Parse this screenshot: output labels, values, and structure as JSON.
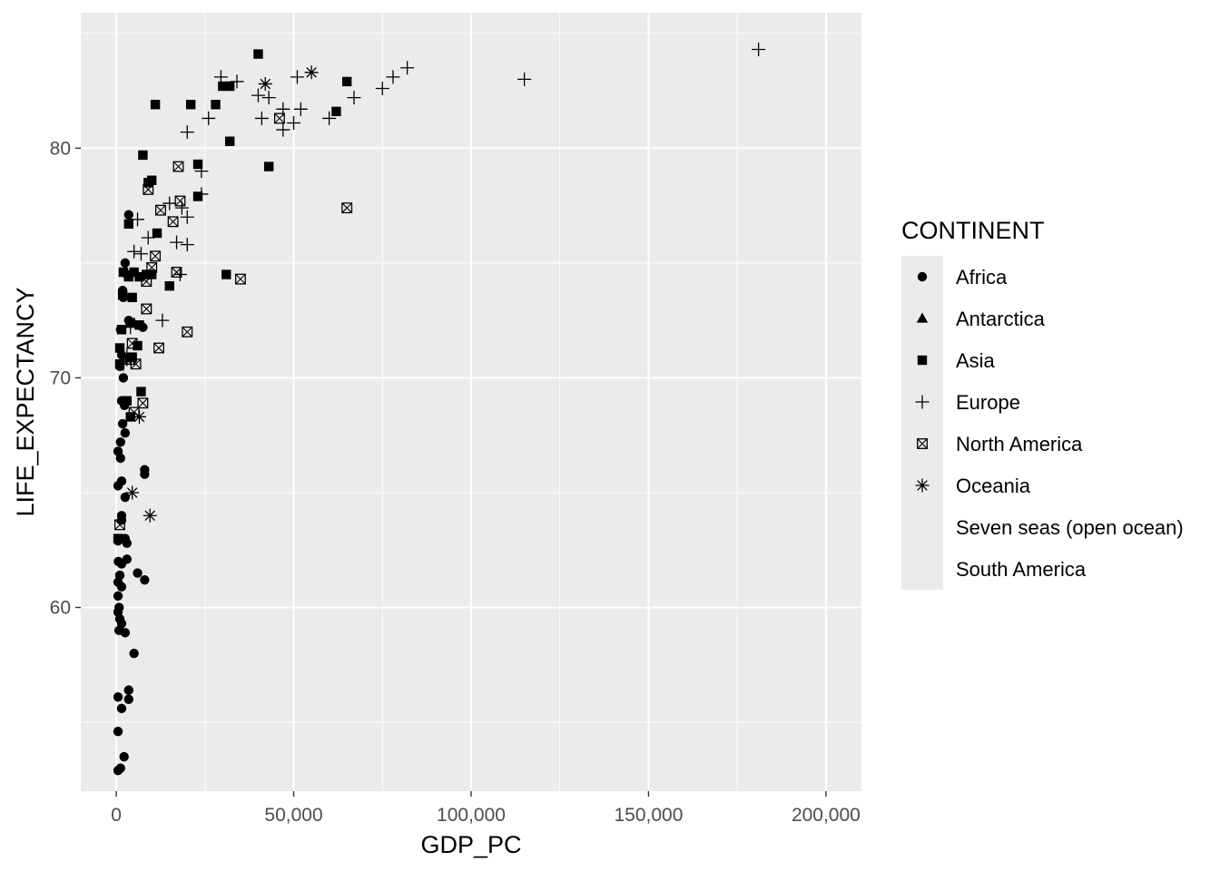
{
  "chart_data": {
    "type": "scatter",
    "xlabel": "GDP_PC",
    "ylabel": "LIFE_EXPECTANCY",
    "xlim": [
      -10000,
      210000
    ],
    "ylim": [
      52,
      85.9
    ],
    "x_ticks": [
      0,
      50000,
      100000,
      150000,
      200000
    ],
    "x_tick_labels": [
      "0",
      "50,000",
      "100,000",
      "150,000",
      "200,000"
    ],
    "y_ticks": [
      60,
      70,
      80
    ],
    "y_tick_labels": [
      "60",
      "70",
      "80"
    ],
    "grid": true,
    "legend_position": "right",
    "legend": {
      "title": "CONTINENT",
      "entries": [
        {
          "name": "Africa",
          "shape": "circle"
        },
        {
          "name": "Antarctica",
          "shape": "triangle"
        },
        {
          "name": "Asia",
          "shape": "square"
        },
        {
          "name": "Europe",
          "shape": "plus"
        },
        {
          "name": "North America",
          "shape": "boxx"
        },
        {
          "name": "Oceania",
          "shape": "star"
        },
        {
          "name": "Seven seas (open ocean)",
          "shape": "none"
        },
        {
          "name": "South America",
          "shape": "none"
        }
      ]
    },
    "series": [
      {
        "name": "Africa",
        "shape": "circle",
        "points": [
          [
            3500,
            77.1
          ],
          [
            2500,
            75.0
          ],
          [
            3000,
            74.5
          ],
          [
            1800,
            73.8
          ],
          [
            2000,
            73.5
          ],
          [
            1200,
            72.1
          ],
          [
            3500,
            72.5
          ],
          [
            7500,
            72.2
          ],
          [
            1500,
            71.0
          ],
          [
            1000,
            70.5
          ],
          [
            2000,
            70.0
          ],
          [
            1500,
            69.0
          ],
          [
            2300,
            68.8
          ],
          [
            1800,
            68.0
          ],
          [
            2500,
            67.6
          ],
          [
            1200,
            67.2
          ],
          [
            500,
            66.8
          ],
          [
            1200,
            66.5
          ],
          [
            8000,
            66.0
          ],
          [
            8000,
            65.8
          ],
          [
            1500,
            65.5
          ],
          [
            500,
            65.3
          ],
          [
            2500,
            64.8
          ],
          [
            1500,
            64.0
          ],
          [
            1500,
            63.8
          ],
          [
            2500,
            63.0
          ],
          [
            3000,
            62.8
          ],
          [
            500,
            62.9
          ],
          [
            600,
            62.0
          ],
          [
            1500,
            61.9
          ],
          [
            3000,
            62.1
          ],
          [
            1000,
            61.4
          ],
          [
            6000,
            61.5
          ],
          [
            500,
            61.1
          ],
          [
            1500,
            60.9
          ],
          [
            8000,
            61.2
          ],
          [
            500,
            60.5
          ],
          [
            800,
            60.0
          ],
          [
            500,
            59.8
          ],
          [
            1000,
            59.5
          ],
          [
            1500,
            59.3
          ],
          [
            800,
            59.0
          ],
          [
            2500,
            58.9
          ],
          [
            5000,
            58.0
          ],
          [
            500,
            56.1
          ],
          [
            3500,
            56.4
          ],
          [
            3500,
            56.0
          ],
          [
            1500,
            55.6
          ],
          [
            2200,
            53.5
          ],
          [
            500,
            54.6
          ],
          [
            500,
            52.9
          ],
          [
            1200,
            53.0
          ]
        ]
      },
      {
        "name": "Antarctica",
        "shape": "triangle",
        "points": []
      },
      {
        "name": "Asia",
        "shape": "square",
        "points": [
          [
            40000,
            84.1
          ],
          [
            30000,
            82.7
          ],
          [
            32000,
            82.7
          ],
          [
            65000,
            82.9
          ],
          [
            11000,
            81.9
          ],
          [
            21000,
            81.9
          ],
          [
            28000,
            81.9
          ],
          [
            62000,
            81.6
          ],
          [
            32000,
            80.3
          ],
          [
            7500,
            79.7
          ],
          [
            23000,
            79.3
          ],
          [
            43000,
            79.2
          ],
          [
            10000,
            78.6
          ],
          [
            9000,
            78.5
          ],
          [
            23000,
            77.9
          ],
          [
            3500,
            76.7
          ],
          [
            11500,
            76.3
          ],
          [
            15000,
            74.0
          ],
          [
            31000,
            74.5
          ],
          [
            2000,
            74.6
          ],
          [
            3500,
            74.4
          ],
          [
            5000,
            74.6
          ],
          [
            6500,
            74.4
          ],
          [
            8500,
            74.5
          ],
          [
            10000,
            74.5
          ],
          [
            4500,
            73.5
          ],
          [
            1800,
            73.6
          ],
          [
            1500,
            72.1
          ],
          [
            4000,
            72.4
          ],
          [
            6500,
            72.3
          ],
          [
            1000,
            71.3
          ],
          [
            6000,
            71.4
          ],
          [
            4500,
            70.9
          ],
          [
            1000,
            70.6
          ],
          [
            7000,
            69.4
          ],
          [
            3000,
            69.0
          ],
          [
            4000,
            68.3
          ],
          [
            500,
            63.0
          ]
        ]
      },
      {
        "name": "Europe",
        "shape": "plus",
        "points": [
          [
            181000,
            84.3
          ],
          [
            82000,
            83.5
          ],
          [
            78000,
            83.1
          ],
          [
            115000,
            83.0
          ],
          [
            29500,
            83.1
          ],
          [
            34000,
            82.9
          ],
          [
            51000,
            83.1
          ],
          [
            75000,
            82.6
          ],
          [
            40000,
            82.3
          ],
          [
            43000,
            82.2
          ],
          [
            67000,
            82.2
          ],
          [
            47000,
            81.7
          ],
          [
            52000,
            81.7
          ],
          [
            26000,
            81.3
          ],
          [
            41000,
            81.3
          ],
          [
            50000,
            81.1
          ],
          [
            60000,
            81.3
          ],
          [
            47000,
            80.8
          ],
          [
            20000,
            80.7
          ],
          [
            24000,
            79.0
          ],
          [
            24000,
            78.0
          ],
          [
            15000,
            77.6
          ],
          [
            18500,
            77.4
          ],
          [
            20000,
            77.0
          ],
          [
            6000,
            76.9
          ],
          [
            9000,
            76.1
          ],
          [
            17000,
            75.9
          ],
          [
            20000,
            75.8
          ],
          [
            5000,
            75.5
          ],
          [
            7000,
            75.4
          ],
          [
            18000,
            74.5
          ],
          [
            13000,
            72.5
          ],
          [
            4000,
            72.2
          ],
          [
            3000,
            71.0
          ],
          [
            2000,
            70.6
          ]
        ]
      },
      {
        "name": "North America",
        "shape": "boxx",
        "points": [
          [
            46000,
            81.3
          ],
          [
            17500,
            79.2
          ],
          [
            9000,
            78.2
          ],
          [
            18000,
            77.7
          ],
          [
            12500,
            77.3
          ],
          [
            16000,
            76.8
          ],
          [
            65000,
            77.4
          ],
          [
            11000,
            75.3
          ],
          [
            10000,
            74.8
          ],
          [
            17000,
            74.6
          ],
          [
            8500,
            74.2
          ],
          [
            35000,
            74.3
          ],
          [
            8500,
            73.0
          ],
          [
            20000,
            72.0
          ],
          [
            12000,
            71.3
          ],
          [
            4500,
            71.5
          ],
          [
            4000,
            70.8
          ],
          [
            5500,
            70.6
          ],
          [
            7500,
            68.9
          ],
          [
            5000,
            68.5
          ],
          [
            1000,
            63.6
          ]
        ]
      },
      {
        "name": "Oceania",
        "shape": "star",
        "points": [
          [
            55000,
            83.3
          ],
          [
            42000,
            82.8
          ],
          [
            3000,
            70.8
          ],
          [
            6500,
            68.3
          ],
          [
            4500,
            65.0
          ],
          [
            9500,
            64.0
          ]
        ]
      },
      {
        "name": "Seven seas (open ocean)",
        "shape": "none",
        "points": []
      },
      {
        "name": "South America",
        "shape": "none",
        "points": []
      }
    ]
  }
}
